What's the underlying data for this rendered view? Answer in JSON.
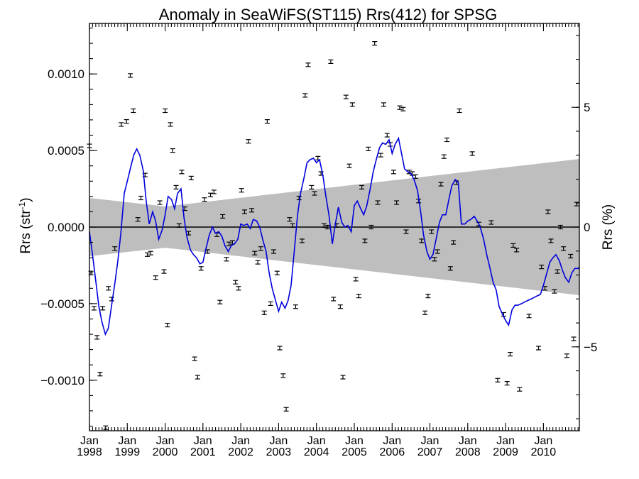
{
  "chart_data": {
    "type": "scatter",
    "title": "Anomaly in SeaWiFS(ST115) Rrs(412) for SPSG",
    "ylabel_left": "Rrs (str",
    "ylabel_left_exp": "-1",
    "ylabel_left_close": ")",
    "ylabel_right": "Rrs (%)",
    "xlim": [
      1998.0,
      2010.95
    ],
    "ylim": [
      -0.00133,
      0.00133
    ],
    "ylim_right_pct": [
      -8.5,
      8.5
    ],
    "x_ticks": [
      {
        "value": 1998,
        "month": "Jan",
        "year": "1998"
      },
      {
        "value": 1999,
        "month": "Jan",
        "year": "1999"
      },
      {
        "value": 2000,
        "month": "Jan",
        "year": "2000"
      },
      {
        "value": 2001,
        "month": "Jan",
        "year": "2001"
      },
      {
        "value": 2002,
        "month": "Jan",
        "year": "2002"
      },
      {
        "value": 2003,
        "month": "Jan",
        "year": "2003"
      },
      {
        "value": 2004,
        "month": "Jan",
        "year": "2004"
      },
      {
        "value": 2005,
        "month": "Jan",
        "year": "2005"
      },
      {
        "value": 2006,
        "month": "Jan",
        "year": "2006"
      },
      {
        "value": 2007,
        "month": "Jan",
        "year": "2007"
      },
      {
        "value": 2008,
        "month": "Jan",
        "year": "2008"
      },
      {
        "value": 2009,
        "month": "Jan",
        "year": "2009"
      },
      {
        "value": 2010,
        "month": "Jan",
        "year": "2010"
      }
    ],
    "y_ticks_left": [
      {
        "value": 0.001,
        "label": "0.0010"
      },
      {
        "value": 0.0005,
        "label": "0.0005"
      },
      {
        "value": 0.0,
        "label": "0.0000"
      },
      {
        "value": -0.0005,
        "label": "−0.0005"
      },
      {
        "value": -0.001,
        "label": "−0.0010"
      }
    ],
    "y_ticks_right": [
      {
        "value": 5,
        "label": "5"
      },
      {
        "value": 0,
        "label": "0"
      },
      {
        "value": -5,
        "label": "−5"
      }
    ],
    "band": {
      "color": "#bebebe",
      "upper": [
        [
          1998.0,
          0.00019
        ],
        [
          2000.0,
          0.000135
        ],
        [
          2010.95,
          0.000445
        ]
      ],
      "lower": [
        [
          1998.0,
          -0.00019
        ],
        [
          2000.0,
          -0.000135
        ],
        [
          2010.95,
          -0.000445
        ]
      ]
    },
    "line_color": "#0000dd",
    "smoothed_line": [
      [
        1998.0,
        -3e-05
      ],
      [
        1998.08,
        -0.00018
      ],
      [
        1998.17,
        -0.00036
      ],
      [
        1998.25,
        -0.00052
      ],
      [
        1998.33,
        -0.00062
      ],
      [
        1998.42,
        -0.0007
      ],
      [
        1998.5,
        -0.00066
      ],
      [
        1998.58,
        -0.00052
      ],
      [
        1998.67,
        -0.00037
      ],
      [
        1998.75,
        -0.00022
      ],
      [
        1998.83,
        -4e-05
      ],
      [
        1998.92,
        0.00022
      ],
      [
        1999.0,
        0.0003
      ],
      [
        1999.08,
        0.00038
      ],
      [
        1999.17,
        0.00047
      ],
      [
        1999.25,
        0.00051
      ],
      [
        1999.33,
        0.00047
      ],
      [
        1999.42,
        0.00037
      ],
      [
        1999.5,
        0.00017
      ],
      [
        1999.58,
        2e-05
      ],
      [
        1999.67,
        0.0001
      ],
      [
        1999.75,
        4e-05
      ],
      [
        1999.83,
        -8e-05
      ],
      [
        1999.92,
        -2e-05
      ],
      [
        2000.0,
        8e-05
      ],
      [
        2000.08,
        0.0002
      ],
      [
        2000.17,
        0.00018
      ],
      [
        2000.25,
        0.00012
      ],
      [
        2000.33,
        0.00022
      ],
      [
        2000.42,
        0.00025
      ],
      [
        2000.5,
        6e-05
      ],
      [
        2000.58,
        -7e-05
      ],
      [
        2000.67,
        -0.00015
      ],
      [
        2000.75,
        -0.00018
      ],
      [
        2000.83,
        -0.0002
      ],
      [
        2000.92,
        -0.00024
      ],
      [
        2001.0,
        -0.00023
      ],
      [
        2001.08,
        -0.00014
      ],
      [
        2001.17,
        -5e-05
      ],
      [
        2001.25,
        0.0
      ],
      [
        2001.33,
        -4e-05
      ],
      [
        2001.42,
        -3e-05
      ],
      [
        2001.5,
        -6e-05
      ],
      [
        2001.58,
        -0.00012
      ],
      [
        2001.67,
        -0.00016
      ],
      [
        2001.75,
        -0.00012
      ],
      [
        2001.83,
        -0.00011
      ],
      [
        2001.92,
        -8e-05
      ],
      [
        2002.0,
        2e-05
      ],
      [
        2002.08,
        1e-05
      ],
      [
        2002.17,
        2e-05
      ],
      [
        2002.25,
        -1e-05
      ],
      [
        2002.33,
        5e-05
      ],
      [
        2002.42,
        4e-05
      ],
      [
        2002.5,
        0.0
      ],
      [
        2002.58,
        -8e-05
      ],
      [
        2002.67,
        -0.00016
      ],
      [
        2002.75,
        -0.0003
      ],
      [
        2002.83,
        -0.0004
      ],
      [
        2002.92,
        -0.00048
      ],
      [
        2003.0,
        -0.00055
      ],
      [
        2003.08,
        -0.00049
      ],
      [
        2003.17,
        -0.00053
      ],
      [
        2003.25,
        -0.00048
      ],
      [
        2003.33,
        -0.00038
      ],
      [
        2003.42,
        -0.00014
      ],
      [
        2003.5,
        8e-05
      ],
      [
        2003.58,
        0.00022
      ],
      [
        2003.67,
        0.00032
      ],
      [
        2003.75,
        0.00042
      ],
      [
        2003.83,
        0.00044
      ],
      [
        2003.92,
        0.00045
      ],
      [
        2004.0,
        0.00042
      ],
      [
        2004.08,
        0.00044
      ],
      [
        2004.17,
        0.00034
      ],
      [
        2004.25,
        0.0002
      ],
      [
        2004.33,
        8e-05
      ],
      [
        2004.42,
        -0.00011
      ],
      [
        2004.5,
        2e-05
      ],
      [
        2004.58,
        0.00013
      ],
      [
        2004.67,
        3e-05
      ],
      [
        2004.75,
        0.0
      ],
      [
        2004.83,
        1e-05
      ],
      [
        2004.92,
        -3e-05
      ],
      [
        2005.0,
        0.00014
      ],
      [
        2005.08,
        0.00017
      ],
      [
        2005.17,
        0.00012
      ],
      [
        2005.25,
        8e-05
      ],
      [
        2005.33,
        0.00014
      ],
      [
        2005.42,
        0.00025
      ],
      [
        2005.5,
        0.00036
      ],
      [
        2005.58,
        0.00044
      ],
      [
        2005.67,
        0.00052
      ],
      [
        2005.75,
        0.00055
      ],
      [
        2005.83,
        0.00054
      ],
      [
        2005.92,
        0.00057
      ],
      [
        2006.0,
        0.00048
      ],
      [
        2006.08,
        0.00054
      ],
      [
        2006.17,
        0.00058
      ],
      [
        2006.25,
        0.00048
      ],
      [
        2006.33,
        0.00038
      ],
      [
        2006.42,
        0.00036
      ],
      [
        2006.5,
        0.00035
      ],
      [
        2006.58,
        0.00031
      ],
      [
        2006.67,
        0.00024
      ],
      [
        2006.75,
        0.00011
      ],
      [
        2006.83,
        -5e-05
      ],
      [
        2006.92,
        -0.00016
      ],
      [
        2007.0,
        -0.00021
      ],
      [
        2007.08,
        -0.00018
      ],
      [
        2007.17,
        -7e-05
      ],
      [
        2007.25,
        3e-05
      ],
      [
        2007.33,
        8e-05
      ],
      [
        2007.42,
        8e-05
      ],
      [
        2007.5,
        0.00018
      ],
      [
        2007.58,
        0.00027
      ],
      [
        2007.67,
        0.00031
      ],
      [
        2007.75,
        0.00029
      ],
      [
        2007.83,
        2e-05
      ],
      [
        2007.92,
        2e-05
      ],
      [
        2008.0,
        4e-05
      ],
      [
        2008.08,
        5e-05
      ],
      [
        2008.17,
        7e-05
      ],
      [
        2008.25,
        4e-05
      ],
      [
        2008.33,
        0.0
      ],
      [
        2008.42,
        -8e-05
      ],
      [
        2008.5,
        -0.00018
      ],
      [
        2008.58,
        -0.00026
      ],
      [
        2008.67,
        -0.00036
      ],
      [
        2008.75,
        -0.00041
      ],
      [
        2008.83,
        -0.00052
      ],
      [
        2008.92,
        -0.00057
      ],
      [
        2009.0,
        -0.00061
      ],
      [
        2009.08,
        -0.00064
      ],
      [
        2009.17,
        -0.00054
      ],
      [
        2009.25,
        -0.00051
      ],
      [
        2009.33,
        -0.00051
      ],
      [
        2009.42,
        -0.0005
      ],
      [
        2009.5,
        -0.00049
      ],
      [
        2009.58,
        -0.00048
      ],
      [
        2009.67,
        -0.00047
      ],
      [
        2009.75,
        -0.00046
      ],
      [
        2009.83,
        -0.00045
      ],
      [
        2009.92,
        -0.00044
      ],
      [
        2010.0,
        -0.00038
      ],
      [
        2010.08,
        -0.00031
      ],
      [
        2010.17,
        -0.00023
      ],
      [
        2010.25,
        -0.0002
      ],
      [
        2010.33,
        -0.00018
      ],
      [
        2010.42,
        -0.00022
      ],
      [
        2010.5,
        -0.00028
      ],
      [
        2010.58,
        -0.00033
      ],
      [
        2010.67,
        -0.00036
      ],
      [
        2010.75,
        -0.0003
      ],
      [
        2010.83,
        -0.00027
      ],
      [
        2010.92,
        -0.00027
      ],
      [
        2010.95,
        -0.00026
      ]
    ],
    "points": [
      [
        1998.0,
        0.00053
      ],
      [
        1998.04,
        -0.0003
      ],
      [
        1998.12,
        -0.00053
      ],
      [
        1998.2,
        -0.00072
      ],
      [
        1998.28,
        -0.00096
      ],
      [
        1998.35,
        -0.00053
      ],
      [
        1998.43,
        -0.00131
      ],
      [
        1998.5,
        -0.0004
      ],
      [
        1998.59,
        -0.00047
      ],
      [
        1998.67,
        -0.00014
      ],
      [
        1998.84,
        0.00067
      ],
      [
        1998.98,
        0.00069
      ],
      [
        1999.08,
        0.00099
      ],
      [
        1999.16,
        0.00076
      ],
      [
        1999.28,
        5e-05
      ],
      [
        1999.36,
        0.00019
      ],
      [
        1999.47,
        0.00034
      ],
      [
        1999.53,
        -0.00018
      ],
      [
        1999.62,
        -0.00017
      ],
      [
        1999.75,
        -0.00033
      ],
      [
        1999.86,
        0.00016
      ],
      [
        1999.97,
        -0.00029
      ],
      [
        2000.0,
        0.00076
      ],
      [
        2000.06,
        -0.00064
      ],
      [
        2000.14,
        0.00067
      ],
      [
        2000.2,
        0.0005
      ],
      [
        2000.29,
        0.00026
      ],
      [
        2000.37,
        1e-05
      ],
      [
        2000.44,
        0.00036
      ],
      [
        2000.52,
        0.00012
      ],
      [
        2000.62,
        -4e-05
      ],
      [
        2000.69,
        0.00032
      ],
      [
        2000.78,
        -0.00086
      ],
      [
        2000.86,
        -0.00098
      ],
      [
        2000.95,
        -0.00027
      ],
      [
        2001.04,
        0.00018
      ],
      [
        2001.12,
        -0.00016
      ],
      [
        2001.2,
        0.00021
      ],
      [
        2001.29,
        0.00023
      ],
      [
        2001.37,
        -5e-05
      ],
      [
        2001.45,
        -0.00049
      ],
      [
        2001.52,
        7e-05
      ],
      [
        2001.62,
        -0.00021
      ],
      [
        2001.69,
        -0.00011
      ],
      [
        2001.78,
        -0.0001
      ],
      [
        2001.86,
        -0.00036
      ],
      [
        2001.94,
        -0.0004
      ],
      [
        2002.02,
        0.00024
      ],
      [
        2002.1,
        0.0001
      ],
      [
        2002.2,
        0.00056
      ],
      [
        2002.29,
        0.00011
      ],
      [
        2002.37,
        -0.00017
      ],
      [
        2002.45,
        -0.00023
      ],
      [
        2002.53,
        -0.00014
      ],
      [
        2002.62,
        -0.00056
      ],
      [
        2002.7,
        0.00069
      ],
      [
        2002.79,
        -0.0005
      ],
      [
        2002.87,
        -0.00016
      ],
      [
        2002.96,
        -0.0003
      ],
      [
        2003.03,
        -0.00079
      ],
      [
        2003.12,
        -0.00097
      ],
      [
        2003.2,
        -0.00119
      ],
      [
        2003.29,
        5e-05
      ],
      [
        2003.37,
        1e-05
      ],
      [
        2003.45,
        -0.00052
      ],
      [
        2003.54,
        0.00019
      ],
      [
        2003.62,
        -9e-05
      ],
      [
        2003.7,
        0.00086
      ],
      [
        2003.78,
        0.00106
      ],
      [
        2003.87,
        0.00026
      ],
      [
        2003.95,
        0.00022
      ],
      [
        2004.04,
        0.00045
      ],
      [
        2004.12,
        0.00035
      ],
      [
        2004.2,
        1e-05
      ],
      [
        2004.29,
        0.0
      ],
      [
        2004.38,
        0.00108
      ],
      [
        2004.45,
        -0.00047
      ],
      [
        2004.54,
        1e-05
      ],
      [
        2004.63,
        -0.00052
      ],
      [
        2004.7,
        -0.00098
      ],
      [
        2004.78,
        0.00085
      ],
      [
        2004.87,
        0.0004
      ],
      [
        2004.95,
        0.0008
      ],
      [
        2005.04,
        -0.00034
      ],
      [
        2005.12,
        -0.00045
      ],
      [
        2005.2,
        0.00026
      ],
      [
        2005.28,
        -9e-05
      ],
      [
        2005.37,
        0.00051
      ],
      [
        2005.45,
        0.0
      ],
      [
        2005.54,
        0.0012
      ],
      [
        2005.62,
        0.00016
      ],
      [
        2005.7,
        0.00047
      ],
      [
        2005.78,
        0.0008
      ],
      [
        2005.87,
        0.0006
      ],
      [
        2005.95,
        0.00054
      ],
      [
        2006.04,
        0.00036
      ],
      [
        2006.12,
        0.00016
      ],
      [
        2006.2,
        0.00078
      ],
      [
        2006.29,
        0.00077
      ],
      [
        2006.37,
        -3e-05
      ],
      [
        2006.45,
        0.00036
      ],
      [
        2006.53,
        0.00035
      ],
      [
        2006.62,
        0.00033
      ],
      [
        2006.7,
        0.00017
      ],
      [
        2006.78,
        -9e-05
      ],
      [
        2006.87,
        -0.00056
      ],
      [
        2006.95,
        -0.00045
      ],
      [
        2007.04,
        -3e-05
      ],
      [
        2007.12,
        -0.00021
      ],
      [
        2007.2,
        -0.00016
      ],
      [
        2007.29,
        0.00028
      ],
      [
        2007.37,
        0.00046
      ],
      [
        2007.45,
        0.00057
      ],
      [
        2007.54,
        -0.00027
      ],
      [
        2007.62,
        -0.0001
      ],
      [
        2007.7,
        0.00029
      ],
      [
        2007.78,
        0.00076
      ],
      [
        2008.12,
        0.00048
      ],
      [
        2008.29,
        2e-05
      ],
      [
        2008.62,
        3e-05
      ],
      [
        2008.79,
        -0.001
      ],
      [
        2008.95,
        -0.00057
      ],
      [
        2009.04,
        -0.00102
      ],
      [
        2009.12,
        -0.00083
      ],
      [
        2009.2,
        -0.00012
      ],
      [
        2009.29,
        -0.00015
      ],
      [
        2009.37,
        -0.00106
      ],
      [
        2009.62,
        -0.00058
      ],
      [
        2009.87,
        -0.00079
      ],
      [
        2009.95,
        -0.00026
      ],
      [
        2010.04,
        -0.0004
      ],
      [
        2010.12,
        0.0001
      ],
      [
        2010.2,
        -9e-05
      ],
      [
        2010.29,
        -0.00042
      ],
      [
        2010.37,
        -0.00029
      ],
      [
        2010.45,
        0.0
      ],
      [
        2010.53,
        -0.00014
      ],
      [
        2010.62,
        -0.00084
      ],
      [
        2010.72,
        -0.00019
      ],
      [
        2010.8,
        -0.00073
      ],
      [
        2010.88,
        0.00015
      ]
    ]
  }
}
